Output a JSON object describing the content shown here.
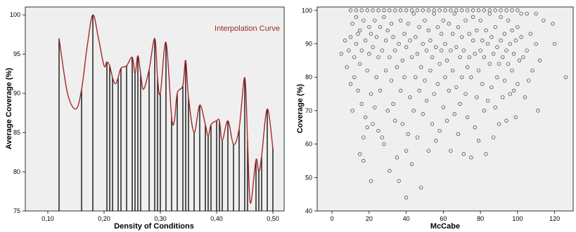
{
  "chart_data": [
    {
      "type": "bar",
      "xlabel": "Density of Conditions",
      "ylabel": "Average Coverage (%)",
      "xlim": [
        0.06,
        0.52
      ],
      "ylim": [
        75,
        101
      ],
      "x_ticks": [
        "0,10",
        "0,20",
        "0,30",
        "0,40",
        "0,50"
      ],
      "y_ticks": [
        "75",
        "80",
        "85",
        "90",
        "95",
        "100"
      ],
      "x_tick_values": [
        0.1,
        0.2,
        0.3,
        0.4,
        0.5
      ],
      "y_tick_values": [
        75,
        80,
        85,
        90,
        95,
        100
      ],
      "grid": false,
      "legend": "top-right",
      "plot_background": "#efefef",
      "bar_color": "#000000",
      "curve_color": "#a52a2a",
      "curve": {
        "name": "Interpolation Curve",
        "x": [
          0.12,
          0.135,
          0.15,
          0.16,
          0.17,
          0.18,
          0.19,
          0.2,
          0.205,
          0.21,
          0.215,
          0.22,
          0.225,
          0.23,
          0.24,
          0.25,
          0.255,
          0.26,
          0.265,
          0.27,
          0.28,
          0.29,
          0.295,
          0.3,
          0.31,
          0.32,
          0.325,
          0.33,
          0.34,
          0.345,
          0.35,
          0.36,
          0.37,
          0.38,
          0.385,
          0.39,
          0.4,
          0.405,
          0.41,
          0.42,
          0.43,
          0.44,
          0.45,
          0.455,
          0.46,
          0.47,
          0.475,
          0.48,
          0.49,
          0.5
        ],
        "y": [
          97.0,
          90.0,
          88.0,
          90.5,
          96.0,
          100.0,
          97.0,
          93.5,
          94.0,
          93.5,
          92.0,
          91.2,
          92.0,
          93.2,
          93.5,
          94.6,
          92.5,
          94.8,
          92.5,
          90.5,
          93.0,
          97.0,
          92.0,
          90.0,
          96.5,
          87.0,
          86.5,
          90.0,
          91.0,
          94.2,
          89.5,
          85.0,
          88.5,
          86.0,
          84.5,
          86.0,
          86.5,
          86.5,
          84.0,
          86.5,
          83.5,
          85.5,
          92.0,
          84.0,
          76.0,
          81.5,
          80.0,
          82.0,
          88.0,
          83.0
        ]
      },
      "bars": [
        {
          "x": 0.12,
          "y": 97.0
        },
        {
          "x": 0.16,
          "y": 90.5
        },
        {
          "x": 0.18,
          "y": 100.0
        },
        {
          "x": 0.205,
          "y": 94.0
        },
        {
          "x": 0.21,
          "y": 93.5
        },
        {
          "x": 0.215,
          "y": 92.0
        },
        {
          "x": 0.225,
          "y": 92.0
        },
        {
          "x": 0.23,
          "y": 93.2
        },
        {
          "x": 0.24,
          "y": 93.5
        },
        {
          "x": 0.25,
          "y": 94.6
        },
        {
          "x": 0.255,
          "y": 92.5
        },
        {
          "x": 0.26,
          "y": 94.8
        },
        {
          "x": 0.265,
          "y": 92.5
        },
        {
          "x": 0.28,
          "y": 93.0
        },
        {
          "x": 0.29,
          "y": 97.0
        },
        {
          "x": 0.295,
          "y": 92.0
        },
        {
          "x": 0.3,
          "y": 90.0
        },
        {
          "x": 0.31,
          "y": 96.5
        },
        {
          "x": 0.32,
          "y": 87.0
        },
        {
          "x": 0.33,
          "y": 90.0
        },
        {
          "x": 0.34,
          "y": 91.0
        },
        {
          "x": 0.345,
          "y": 94.2
        },
        {
          "x": 0.35,
          "y": 89.5
        },
        {
          "x": 0.36,
          "y": 85.0
        },
        {
          "x": 0.37,
          "y": 88.5
        },
        {
          "x": 0.38,
          "y": 86.0
        },
        {
          "x": 0.385,
          "y": 84.5
        },
        {
          "x": 0.39,
          "y": 86.0
        },
        {
          "x": 0.4,
          "y": 86.5
        },
        {
          "x": 0.405,
          "y": 86.5
        },
        {
          "x": 0.41,
          "y": 84.0
        },
        {
          "x": 0.42,
          "y": 86.5
        },
        {
          "x": 0.43,
          "y": 83.5
        },
        {
          "x": 0.44,
          "y": 85.5
        },
        {
          "x": 0.45,
          "y": 92.0
        },
        {
          "x": 0.455,
          "y": 84.0
        },
        {
          "x": 0.47,
          "y": 81.5
        },
        {
          "x": 0.475,
          "y": 80.0
        },
        {
          "x": 0.48,
          "y": 82.0
        },
        {
          "x": 0.49,
          "y": 88.0
        },
        {
          "x": 0.5,
          "y": 83.0
        }
      ]
    },
    {
      "type": "scatter",
      "xlabel": "McCabe",
      "ylabel": "Coverage (%)",
      "xlim": [
        -8,
        130
      ],
      "ylim": [
        40,
        101
      ],
      "x_ticks": [
        "0",
        "20",
        "40",
        "60",
        "80",
        "100",
        "120"
      ],
      "y_ticks": [
        "40",
        "50",
        "60",
        "70",
        "80",
        "90",
        "100"
      ],
      "x_tick_values": [
        0,
        20,
        40,
        60,
        80,
        100,
        120
      ],
      "y_tick_values": [
        40,
        50,
        60,
        70,
        80,
        90,
        100
      ],
      "grid": false,
      "marker": "open-circle",
      "plot_background": "#efefef",
      "point_color": "#333333",
      "points": [
        [
          5,
          87
        ],
        [
          7,
          91
        ],
        [
          8,
          83
        ],
        [
          9,
          88
        ],
        [
          10,
          78
        ],
        [
          10,
          92
        ],
        [
          11,
          70
        ],
        [
          11,
          96
        ],
        [
          12,
          86
        ],
        [
          12,
          80
        ],
        [
          13,
          90
        ],
        [
          13,
          98
        ],
        [
          14,
          76
        ],
        [
          14,
          93
        ],
        [
          15,
          57
        ],
        [
          15,
          84
        ],
        [
          15,
          94
        ],
        [
          16,
          72
        ],
        [
          16,
          88
        ],
        [
          17,
          55
        ],
        [
          17,
          62
        ],
        [
          17,
          97
        ],
        [
          18,
          68
        ],
        [
          18,
          91
        ],
        [
          19,
          65
        ],
        [
          19,
          82
        ],
        [
          20,
          87
        ],
        [
          20,
          95
        ],
        [
          21,
          49
        ],
        [
          21,
          75
        ],
        [
          21,
          93
        ],
        [
          22,
          66
        ],
        [
          22,
          89
        ],
        [
          23,
          71
        ],
        [
          23,
          97
        ],
        [
          24,
          80
        ],
        [
          24,
          92
        ],
        [
          25,
          64
        ],
        [
          25,
          86
        ],
        [
          26,
          76
        ],
        [
          26,
          95
        ],
        [
          27,
          62
        ],
        [
          27,
          88
        ],
        [
          28,
          60
        ],
        [
          28,
          98
        ],
        [
          29,
          82
        ],
        [
          29,
          91
        ],
        [
          30,
          70
        ],
        [
          30,
          94
        ],
        [
          31,
          52
        ],
        [
          31,
          86
        ],
        [
          32,
          79
        ],
        [
          32,
          96
        ],
        [
          33,
          72
        ],
        [
          33,
          92
        ],
        [
          34,
          67
        ],
        [
          34,
          88
        ],
        [
          35,
          56
        ],
        [
          35,
          83
        ],
        [
          36,
          49
        ],
        [
          36,
          90
        ],
        [
          37,
          76
        ],
        [
          37,
          97
        ],
        [
          38,
          66
        ],
        [
          38,
          85
        ],
        [
          39,
          80
        ],
        [
          39,
          93
        ],
        [
          40,
          44
        ],
        [
          40,
          58
        ],
        [
          40,
          89
        ],
        [
          41,
          63
        ],
        [
          41,
          96
        ],
        [
          42,
          74
        ],
        [
          42,
          91
        ],
        [
          43,
          54
        ],
        [
          43,
          86
        ],
        [
          44,
          70
        ],
        [
          44,
          99
        ],
        [
          45,
          80
        ],
        [
          45,
          92
        ],
        [
          46,
          62
        ],
        [
          46,
          87
        ],
        [
          47,
          76
        ],
        [
          47,
          95
        ],
        [
          48,
          47
        ],
        [
          48,
          83
        ],
        [
          49,
          69
        ],
        [
          49,
          90
        ],
        [
          50,
          79
        ],
        [
          50,
          97
        ],
        [
          51,
          73
        ],
        [
          51,
          88
        ],
        [
          52,
          58
        ],
        [
          52,
          94
        ],
        [
          53,
          82
        ],
        [
          53,
          91
        ],
        [
          54,
          66
        ],
        [
          54,
          86
        ],
        [
          55,
          75
        ],
        [
          55,
          99
        ],
        [
          56,
          61
        ],
        [
          56,
          89
        ],
        [
          57,
          78
        ],
        [
          57,
          95
        ],
        [
          58,
          64
        ],
        [
          58,
          84
        ],
        [
          59,
          88
        ],
        [
          59,
          93
        ],
        [
          60,
          71
        ],
        [
          60,
          97
        ],
        [
          61,
          80
        ],
        [
          61,
          90
        ],
        [
          62,
          67
        ],
        [
          62,
          85
        ],
        [
          63,
          76
        ],
        [
          63,
          96
        ],
        [
          64,
          58
        ],
        [
          64,
          88
        ],
        [
          65,
          82
        ],
        [
          65,
          93
        ],
        [
          66,
          69
        ],
        [
          66,
          99
        ],
        [
          67,
          77
        ],
        [
          67,
          89
        ],
        [
          68,
          63
        ],
        [
          68,
          95
        ],
        [
          69,
          72
        ],
        [
          69,
          86
        ],
        [
          70,
          80
        ],
        [
          70,
          92
        ],
        [
          71,
          57
        ],
        [
          71,
          88
        ],
        [
          72,
          75
        ],
        [
          72,
          97
        ],
        [
          73,
          68
        ],
        [
          73,
          83
        ],
        [
          74,
          86
        ],
        [
          74,
          93
        ],
        [
          75,
          56
        ],
        [
          75,
          80
        ],
        [
          76,
          91
        ],
        [
          76,
          98
        ],
        [
          77,
          65
        ],
        [
          77,
          87
        ],
        [
          78,
          74
        ],
        [
          78,
          94
        ],
        [
          79,
          61
        ],
        [
          79,
          82
        ],
        [
          80,
          88
        ],
        [
          80,
          97
        ],
        [
          81,
          78
        ],
        [
          81,
          91
        ],
        [
          82,
          70
        ],
        [
          82,
          86
        ],
        [
          83,
          57
        ],
        [
          83,
          94
        ],
        [
          84,
          73
        ],
        [
          84,
          90
        ],
        [
          85,
          84
        ],
        [
          85,
          99
        ],
        [
          86,
          77
        ],
        [
          86,
          92
        ],
        [
          87,
          62
        ],
        [
          87,
          87
        ],
        [
          88,
          71
        ],
        [
          88,
          95
        ],
        [
          89,
          80
        ],
        [
          89,
          89
        ],
        [
          90,
          66
        ],
        [
          90,
          84
        ],
        [
          91,
          91
        ],
        [
          91,
          98
        ],
        [
          92,
          74
        ],
        [
          92,
          86
        ],
        [
          93,
          79
        ],
        [
          93,
          93
        ],
        [
          94,
          67
        ],
        [
          94,
          88
        ],
        [
          95,
          84
        ],
        [
          95,
          97
        ],
        [
          96,
          75
        ],
        [
          96,
          90
        ],
        [
          97,
          82
        ],
        [
          97,
          94
        ],
        [
          98,
          76
        ],
        [
          98,
          87
        ],
        [
          99,
          68
        ],
        [
          99,
          91
        ],
        [
          100,
          78
        ],
        [
          100,
          95
        ],
        [
          101,
          85
        ],
        [
          102,
          92
        ],
        [
          103,
          86
        ],
        [
          104,
          74
        ],
        [
          105,
          88
        ],
        [
          106,
          79
        ],
        [
          107,
          93
        ],
        [
          108,
          82
        ],
        [
          110,
          90
        ],
        [
          111,
          70
        ],
        [
          112,
          85
        ],
        [
          114,
          97
        ],
        [
          119,
          96
        ],
        [
          120,
          90
        ],
        [
          126,
          80
        ],
        [
          10,
          100
        ],
        [
          13,
          100
        ],
        [
          16,
          100
        ],
        [
          19,
          100
        ],
        [
          22,
          100
        ],
        [
          25,
          100
        ],
        [
          28,
          100
        ],
        [
          31,
          100
        ],
        [
          34,
          100
        ],
        [
          37,
          100
        ],
        [
          40,
          100
        ],
        [
          43,
          100
        ],
        [
          46,
          100
        ],
        [
          49,
          100
        ],
        [
          52,
          100
        ],
        [
          55,
          100
        ],
        [
          58,
          100
        ],
        [
          61,
          100
        ],
        [
          64,
          100
        ],
        [
          67,
          100
        ],
        [
          70,
          100
        ],
        [
          73,
          100
        ],
        [
          76,
          100
        ],
        [
          79,
          100
        ],
        [
          82,
          100
        ],
        [
          85,
          100
        ],
        [
          88,
          100
        ],
        [
          91,
          100
        ],
        [
          94,
          100
        ],
        [
          97,
          100
        ],
        [
          100,
          100
        ],
        [
          102,
          99
        ],
        [
          105,
          99
        ],
        [
          110,
          99
        ]
      ]
    }
  ]
}
